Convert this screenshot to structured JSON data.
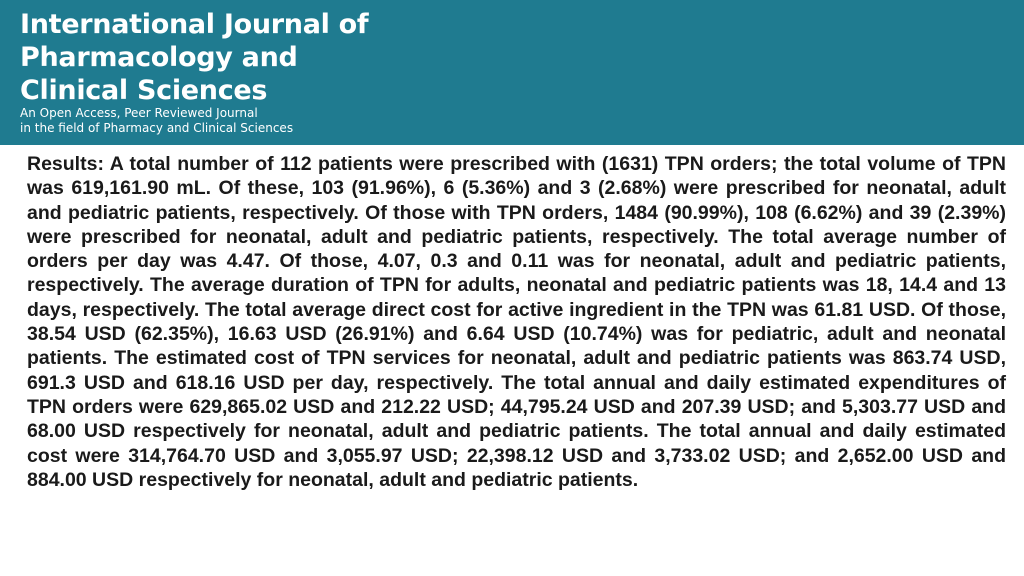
{
  "header": {
    "title_lines": [
      "International Journal of",
      "Pharmacology and",
      "Clinical Sciences"
    ],
    "tagline_lines": [
      "An Open Access, Peer Reviewed Journal",
      "in the field of Pharmacy and Clinical Sciences"
    ],
    "background_color": "#1f7b90"
  },
  "abstract": {
    "label": "Results:",
    "text": " A total number of 112 patients were prescribed with (1631) TPN orders; the total volume of TPN was 619,161.90 mL. Of these, 103 (91.96%), 6 (5.36%) and 3 (2.68%) were prescribed for neonatal, adult and pediatric patients, respectively. Of those with TPN orders, 1484 (90.99%), 108 (6.62%) and 39 (2.39%) were prescribed for neonatal, adult and pediatric patients, respectively. The total average number of orders per day was 4.47. Of those, 4.07, 0.3 and 0.11 was for neonatal, adult and pediatric patients, respectively. The average duration of TPN for adults, neonatal and pediatric patients was 18, 14.4 and 13 days, respectively. The total average direct cost for active ingredient in the TPN was 61.81 USD. Of those, 38.54 USD (62.35%), 16.63 USD (26.91%) and 6.64 USD (10.74%) was for pediatric, adult and neonatal patients. The estimated cost of TPN services for neonatal, adult and pediatric patients was 863.74 USD, 691.3 USD and 618.16 USD per day, respectively. The total annual and daily estimated expenditures of TPN orders were 629,865.02 USD and 212.22 USD; 44,795.24 USD and 207.39 USD; and 5,303.77 USD and 68.00 USD respectively for neonatal, adult and pediatric patients. The total annual and daily estimated cost were 314,764.70 USD and 3,055.97 USD; 22,398.12 USD and 3,733.02 USD; and 2,652.00 USD and 884.00 USD respectively for neonatal, adult and pediatric patients."
  }
}
